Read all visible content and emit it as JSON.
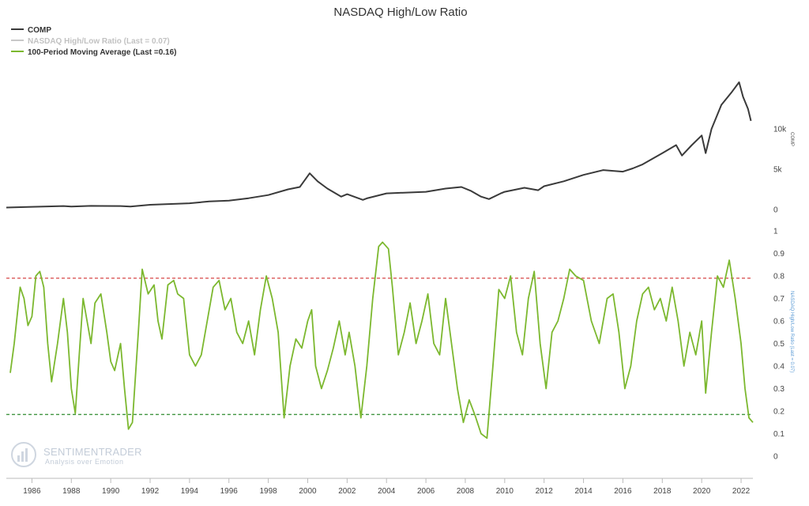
{
  "chart_data": {
    "type": "line",
    "title": "NASDAQ High/Low Ratio",
    "legend": {
      "placement": "top-left",
      "entries": [
        {
          "label": "COMP",
          "color": "#3a3a3a"
        },
        {
          "label": "NASDAQ High/Low Ratio (Last = 0.07)",
          "color": "#c8c8c8"
        },
        {
          "label": "100-Period Moving Average (Last =0.16)",
          "color": "#7cb82f"
        }
      ]
    },
    "x_axis": {
      "ticks": [
        "1986",
        "1988",
        "1990",
        "1992",
        "1994",
        "1996",
        "1998",
        "2000",
        "2002",
        "2004",
        "2006",
        "2008",
        "2010",
        "2012",
        "2014",
        "2016",
        "2018",
        "2020",
        "2022"
      ],
      "range": [
        1984.7,
        2022.6
      ]
    },
    "panels": [
      {
        "name": "COMP",
        "ylabel": "COMP",
        "ylim": [
          0,
          16000
        ],
        "yticks": [
          {
            "v": 0,
            "label": "0"
          },
          {
            "v": 5000,
            "label": "5k"
          },
          {
            "v": 10000,
            "label": "10k"
          }
        ],
        "series": [
          {
            "name": "COMP",
            "color": "#3a3a3a",
            "points": [
              [
                1984.7,
                250
              ],
              [
                1986,
                330
              ],
              [
                1987.6,
                430
              ],
              [
                1988,
                360
              ],
              [
                1989,
                450
              ],
              [
                1990.5,
                430
              ],
              [
                1991,
                370
              ],
              [
                1992,
                590
              ],
              [
                1994,
                780
              ],
              [
                1995,
                1000
              ],
              [
                1996,
                1100
              ],
              [
                1997,
                1400
              ],
              [
                1998,
                1800
              ],
              [
                1999,
                2500
              ],
              [
                1999.6,
                2800
              ],
              [
                2000.1,
                4500
              ],
              [
                2000.5,
                3500
              ],
              [
                2001,
                2600
              ],
              [
                2001.7,
                1600
              ],
              [
                2002,
                1900
              ],
              [
                2002.8,
                1200
              ],
              [
                2003,
                1380
              ],
              [
                2004,
                2000
              ],
              [
                2005,
                2100
              ],
              [
                2006,
                2200
              ],
              [
                2007,
                2600
              ],
              [
                2007.8,
                2800
              ],
              [
                2008.3,
                2300
              ],
              [
                2008.8,
                1600
              ],
              [
                2009.2,
                1300
              ],
              [
                2009.8,
                2000
              ],
              [
                2010,
                2200
              ],
              [
                2011,
                2700
              ],
              [
                2011.7,
                2400
              ],
              [
                2012,
                2900
              ],
              [
                2013,
                3500
              ],
              [
                2014,
                4300
              ],
              [
                2015,
                4900
              ],
              [
                2016,
                4700
              ],
              [
                2016.5,
                5100
              ],
              [
                2017,
                5600
              ],
              [
                2018,
                7000
              ],
              [
                2018.7,
                8000
              ],
              [
                2019,
                6700
              ],
              [
                2019.5,
                8000
              ],
              [
                2020,
                9200
              ],
              [
                2020.2,
                7000
              ],
              [
                2020.5,
                10000
              ],
              [
                2021,
                13000
              ],
              [
                2021.5,
                14500
              ],
              [
                2021.9,
                15800
              ],
              [
                2022.1,
                14000
              ],
              [
                2022.35,
                12500
              ],
              [
                2022.5,
                11000
              ]
            ]
          }
        ]
      },
      {
        "name": "NASDAQ High/Low Ratio",
        "ylabel": "NASDAQ High/Low Ratio (Last = 0.07)",
        "ylim": [
          0,
          1
        ],
        "yticks": [
          {
            "v": 0,
            "label": "0"
          },
          {
            "v": 0.1,
            "label": "0.1"
          },
          {
            "v": 0.2,
            "label": "0.2"
          },
          {
            "v": 0.3,
            "label": "0.3"
          },
          {
            "v": 0.4,
            "label": "0.4"
          },
          {
            "v": 0.5,
            "label": "0.5"
          },
          {
            "v": 0.6,
            "label": "0.6"
          },
          {
            "v": 0.7,
            "label": "0.7"
          },
          {
            "v": 0.8,
            "label": "0.8"
          },
          {
            "v": 0.9,
            "label": "0.9"
          },
          {
            "v": 1,
            "label": "1"
          }
        ],
        "reference_lines": [
          {
            "value": 0.79,
            "color": "#d64545",
            "style": "dashed"
          },
          {
            "value": 0.185,
            "color": "#2e8b2e",
            "style": "dashed"
          }
        ],
        "series": [
          {
            "name": "100-Period Moving Average",
            "color": "#7cb82f",
            "points": [
              [
                1984.9,
                0.37
              ],
              [
                1985.1,
                0.5
              ],
              [
                1985.4,
                0.75
              ],
              [
                1985.6,
                0.7
              ],
              [
                1985.8,
                0.58
              ],
              [
                1986.0,
                0.62
              ],
              [
                1986.2,
                0.8
              ],
              [
                1986.4,
                0.82
              ],
              [
                1986.6,
                0.75
              ],
              [
                1986.8,
                0.5
              ],
              [
                1987.0,
                0.33
              ],
              [
                1987.3,
                0.5
              ],
              [
                1987.6,
                0.7
              ],
              [
                1987.8,
                0.55
              ],
              [
                1988.0,
                0.3
              ],
              [
                1988.2,
                0.19
              ],
              [
                1988.4,
                0.45
              ],
              [
                1988.6,
                0.7
              ],
              [
                1988.8,
                0.6
              ],
              [
                1989.0,
                0.5
              ],
              [
                1989.2,
                0.68
              ],
              [
                1989.5,
                0.72
              ],
              [
                1989.8,
                0.55
              ],
              [
                1990.0,
                0.42
              ],
              [
                1990.2,
                0.38
              ],
              [
                1990.5,
                0.5
              ],
              [
                1990.7,
                0.3
              ],
              [
                1990.9,
                0.12
              ],
              [
                1991.1,
                0.15
              ],
              [
                1991.4,
                0.55
              ],
              [
                1991.6,
                0.83
              ],
              [
                1991.9,
                0.72
              ],
              [
                1992.2,
                0.76
              ],
              [
                1992.4,
                0.6
              ],
              [
                1992.6,
                0.52
              ],
              [
                1992.9,
                0.76
              ],
              [
                1993.2,
                0.78
              ],
              [
                1993.4,
                0.72
              ],
              [
                1993.7,
                0.7
              ],
              [
                1994.0,
                0.45
              ],
              [
                1994.3,
                0.4
              ],
              [
                1994.6,
                0.45
              ],
              [
                1994.9,
                0.6
              ],
              [
                1995.2,
                0.75
              ],
              [
                1995.5,
                0.78
              ],
              [
                1995.8,
                0.65
              ],
              [
                1996.1,
                0.7
              ],
              [
                1996.4,
                0.55
              ],
              [
                1996.7,
                0.5
              ],
              [
                1997.0,
                0.6
              ],
              [
                1997.3,
                0.45
              ],
              [
                1997.6,
                0.65
              ],
              [
                1997.9,
                0.8
              ],
              [
                1998.2,
                0.7
              ],
              [
                1998.5,
                0.55
              ],
              [
                1998.8,
                0.17
              ],
              [
                1999.1,
                0.4
              ],
              [
                1999.4,
                0.52
              ],
              [
                1999.7,
                0.48
              ],
              [
                2000.0,
                0.6
              ],
              [
                2000.2,
                0.65
              ],
              [
                2000.4,
                0.4
              ],
              [
                2000.7,
                0.3
              ],
              [
                2001.0,
                0.38
              ],
              [
                2001.3,
                0.48
              ],
              [
                2001.6,
                0.6
              ],
              [
                2001.9,
                0.45
              ],
              [
                2002.1,
                0.55
              ],
              [
                2002.4,
                0.4
              ],
              [
                2002.7,
                0.17
              ],
              [
                2003.0,
                0.4
              ],
              [
                2003.3,
                0.7
              ],
              [
                2003.6,
                0.93
              ],
              [
                2003.8,
                0.95
              ],
              [
                2004.1,
                0.92
              ],
              [
                2004.3,
                0.75
              ],
              [
                2004.6,
                0.45
              ],
              [
                2004.9,
                0.55
              ],
              [
                2005.2,
                0.68
              ],
              [
                2005.5,
                0.5
              ],
              [
                2005.8,
                0.6
              ],
              [
                2006.1,
                0.72
              ],
              [
                2006.4,
                0.5
              ],
              [
                2006.7,
                0.45
              ],
              [
                2007.0,
                0.7
              ],
              [
                2007.3,
                0.5
              ],
              [
                2007.6,
                0.3
              ],
              [
                2007.9,
                0.15
              ],
              [
                2008.2,
                0.25
              ],
              [
                2008.5,
                0.18
              ],
              [
                2008.8,
                0.1
              ],
              [
                2009.1,
                0.08
              ],
              [
                2009.4,
                0.4
              ],
              [
                2009.7,
                0.74
              ],
              [
                2010.0,
                0.7
              ],
              [
                2010.3,
                0.8
              ],
              [
                2010.6,
                0.55
              ],
              [
                2010.9,
                0.45
              ],
              [
                2011.2,
                0.7
              ],
              [
                2011.5,
                0.82
              ],
              [
                2011.8,
                0.5
              ],
              [
                2012.1,
                0.3
              ],
              [
                2012.4,
                0.55
              ],
              [
                2012.7,
                0.6
              ],
              [
                2013.0,
                0.7
              ],
              [
                2013.3,
                0.83
              ],
              [
                2013.6,
                0.8
              ],
              [
                2014.0,
                0.78
              ],
              [
                2014.4,
                0.6
              ],
              [
                2014.8,
                0.5
              ],
              [
                2015.2,
                0.7
              ],
              [
                2015.5,
                0.72
              ],
              [
                2015.8,
                0.55
              ],
              [
                2016.1,
                0.3
              ],
              [
                2016.4,
                0.4
              ],
              [
                2016.7,
                0.6
              ],
              [
                2017.0,
                0.72
              ],
              [
                2017.3,
                0.75
              ],
              [
                2017.6,
                0.65
              ],
              [
                2017.9,
                0.7
              ],
              [
                2018.2,
                0.6
              ],
              [
                2018.5,
                0.75
              ],
              [
                2018.8,
                0.6
              ],
              [
                2019.1,
                0.4
              ],
              [
                2019.4,
                0.55
              ],
              [
                2019.7,
                0.45
              ],
              [
                2020.0,
                0.6
              ],
              [
                2020.2,
                0.28
              ],
              [
                2020.5,
                0.55
              ],
              [
                2020.8,
                0.8
              ],
              [
                2021.1,
                0.75
              ],
              [
                2021.4,
                0.87
              ],
              [
                2021.7,
                0.7
              ],
              [
                2022.0,
                0.5
              ],
              [
                2022.2,
                0.3
              ],
              [
                2022.4,
                0.17
              ],
              [
                2022.6,
                0.15
              ]
            ]
          }
        ]
      }
    ]
  },
  "watermark": {
    "name": "SENTIMENTRADER",
    "tagline": "Analysis over Emotion"
  }
}
